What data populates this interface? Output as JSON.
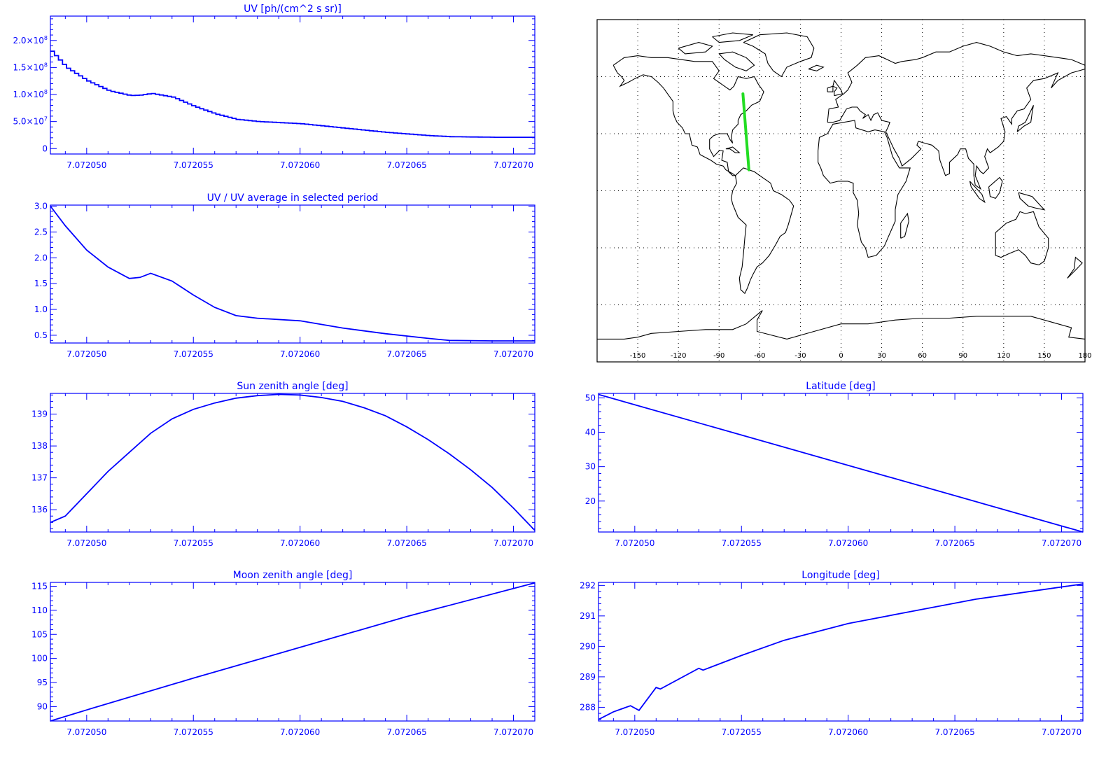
{
  "colors": {
    "axis": "#0000ff",
    "series": "#0000ff",
    "map": "#000000",
    "track": "#22dd22"
  },
  "chart_data": [
    {
      "id": "uv",
      "type": "line",
      "title": "UV [ph/(cm^2 s sr)]",
      "xlabel": "",
      "ylabel": "",
      "step": true,
      "xlim": [
        7.0720483,
        7.072071
      ],
      "ylim": [
        -10000000.0,
        245000000.0
      ],
      "xticks": [
        7.07205,
        7.072055,
        7.07206,
        7.072065,
        7.07207
      ],
      "xtick_labels": [
        "7.072050",
        "7.072055",
        "7.072060",
        "7.072065",
        "7.072070"
      ],
      "yticks": [
        0,
        50000000.0,
        100000000.0,
        150000000.0,
        200000000.0
      ],
      "ytick_labels": [
        {
          "m": "0",
          "e": ""
        },
        {
          "m": "5.0×10",
          "e": "7"
        },
        {
          "m": "1.0×10",
          "e": "8"
        },
        {
          "m": "1.5×10",
          "e": "8"
        },
        {
          "m": "2.0×10",
          "e": "8"
        }
      ],
      "x": [
        7.0720483,
        7.072049,
        7.07205,
        7.072051,
        7.072052,
        7.0720525,
        7.072053,
        7.072054,
        7.072055,
        7.072056,
        7.072057,
        7.072058,
        7.07206,
        7.072062,
        7.072064,
        7.072066,
        7.072067,
        7.072069,
        7.072071
      ],
      "y": [
        180000000.0,
        150000000.0,
        125000000.0,
        107000000.0,
        98000000.0,
        99000000.0,
        102000000.0,
        95000000.0,
        78000000.0,
        64000000.0,
        54000000.0,
        50000000.0,
        46000000.0,
        38000000.0,
        30000000.0,
        24000000.0,
        22000000.0,
        21000000.0,
        21000000.0
      ]
    },
    {
      "id": "uv-ratio",
      "type": "line",
      "title": "UV / UV average in selected period",
      "xlabel": "",
      "ylabel": "",
      "xlim": [
        7.0720483,
        7.072071
      ],
      "ylim": [
        0.35,
        3.02
      ],
      "xticks": [
        7.07205,
        7.072055,
        7.07206,
        7.072065,
        7.07207
      ],
      "xtick_labels": [
        "7.072050",
        "7.072055",
        "7.072060",
        "7.072065",
        "7.072070"
      ],
      "yticks": [
        0.5,
        1.0,
        1.5,
        2.0,
        2.5,
        3.0
      ],
      "ytick_labels": [
        {
          "m": "0.5",
          "e": ""
        },
        {
          "m": "1.0",
          "e": ""
        },
        {
          "m": "1.5",
          "e": ""
        },
        {
          "m": "2.0",
          "e": ""
        },
        {
          "m": "2.5",
          "e": ""
        },
        {
          "m": "3.0",
          "e": ""
        }
      ],
      "x": [
        7.0720483,
        7.072049,
        7.07205,
        7.072051,
        7.072052,
        7.0720525,
        7.072053,
        7.072054,
        7.072055,
        7.072056,
        7.072057,
        7.072058,
        7.07206,
        7.072062,
        7.072064,
        7.072066,
        7.072067,
        7.072069,
        7.072071
      ],
      "y": [
        3.0,
        2.62,
        2.15,
        1.82,
        1.6,
        1.62,
        1.7,
        1.55,
        1.28,
        1.04,
        0.88,
        0.83,
        0.78,
        0.64,
        0.53,
        0.44,
        0.4,
        0.39,
        0.39
      ]
    },
    {
      "id": "sun-zenith",
      "type": "line",
      "title": "Sun zenith angle [deg]",
      "xlabel": "",
      "ylabel": "",
      "xlim": [
        7.0720483,
        7.072071
      ],
      "ylim": [
        135.3,
        139.65
      ],
      "xticks": [
        7.07205,
        7.072055,
        7.07206,
        7.072065,
        7.07207
      ],
      "xtick_labels": [
        "7.072050",
        "7.072055",
        "7.072060",
        "7.072065",
        "7.072070"
      ],
      "yticks": [
        136,
        137,
        138,
        139
      ],
      "ytick_labels": [
        {
          "m": "136",
          "e": ""
        },
        {
          "m": "137",
          "e": ""
        },
        {
          "m": "138",
          "e": ""
        },
        {
          "m": "139",
          "e": ""
        }
      ],
      "x": [
        7.0720483,
        7.072049,
        7.07205,
        7.072051,
        7.072052,
        7.072053,
        7.072054,
        7.072055,
        7.072056,
        7.072057,
        7.072058,
        7.072059,
        7.07206,
        7.072061,
        7.072062,
        7.072063,
        7.072064,
        7.072065,
        7.072066,
        7.072067,
        7.072068,
        7.072069,
        7.07207,
        7.072071
      ],
      "y": [
        135.6,
        135.8,
        136.5,
        137.2,
        137.8,
        138.4,
        138.85,
        139.15,
        139.35,
        139.5,
        139.58,
        139.62,
        139.6,
        139.52,
        139.4,
        139.2,
        138.95,
        138.6,
        138.2,
        137.75,
        137.25,
        136.7,
        136.05,
        135.35
      ]
    },
    {
      "id": "moon-zenith",
      "type": "line",
      "title": "Moon zenith angle [deg]",
      "xlabel": "",
      "ylabel": "",
      "xlim": [
        7.0720483,
        7.072071
      ],
      "ylim": [
        87,
        115.8
      ],
      "xticks": [
        7.07205,
        7.072055,
        7.07206,
        7.072065,
        7.07207
      ],
      "xtick_labels": [
        "7.072050",
        "7.072055",
        "7.072060",
        "7.072065",
        "7.072070"
      ],
      "yticks": [
        90,
        95,
        100,
        105,
        110,
        115
      ],
      "ytick_labels": [
        {
          "m": "90",
          "e": ""
        },
        {
          "m": "95",
          "e": ""
        },
        {
          "m": "100",
          "e": ""
        },
        {
          "m": "105",
          "e": ""
        },
        {
          "m": "110",
          "e": ""
        },
        {
          "m": "115",
          "e": ""
        }
      ],
      "x": [
        7.0720483,
        7.07205,
        7.072055,
        7.07206,
        7.072065,
        7.072071
      ],
      "y": [
        87.0,
        89.3,
        95.9,
        102.3,
        108.7,
        115.7
      ]
    },
    {
      "id": "latitude",
      "type": "line",
      "title": "Latitude [deg]",
      "xlabel": "",
      "ylabel": "",
      "xlim": [
        7.0720483,
        7.072071
      ],
      "ylim": [
        11,
        51.3
      ],
      "xticks": [
        7.07205,
        7.072055,
        7.07206,
        7.072065,
        7.07207
      ],
      "xtick_labels": [
        "7.072050",
        "7.072055",
        "7.072060",
        "7.072065",
        "7.072070"
      ],
      "yticks": [
        20,
        30,
        40,
        50
      ],
      "ytick_labels": [
        {
          "m": "20",
          "e": ""
        },
        {
          "m": "30",
          "e": ""
        },
        {
          "m": "40",
          "e": ""
        },
        {
          "m": "50",
          "e": ""
        }
      ],
      "x": [
        7.0720483,
        7.072071
      ],
      "y": [
        51.0,
        11.0
      ]
    },
    {
      "id": "longitude",
      "type": "line",
      "title": "Longitude [deg]",
      "xlabel": "",
      "ylabel": "",
      "xlim": [
        7.0720483,
        7.072071
      ],
      "ylim": [
        287.55,
        292.1
      ],
      "xticks": [
        7.07205,
        7.072055,
        7.07206,
        7.072065,
        7.07207
      ],
      "xtick_labels": [
        "7.072050",
        "7.072055",
        "7.072060",
        "7.072065",
        "7.072070"
      ],
      "yticks": [
        288,
        289,
        290,
        291,
        292
      ],
      "ytick_labels": [
        {
          "m": "288",
          "e": ""
        },
        {
          "m": "289",
          "e": ""
        },
        {
          "m": "290",
          "e": ""
        },
        {
          "m": "291",
          "e": ""
        },
        {
          "m": "292",
          "e": ""
        }
      ],
      "x": [
        7.0720483,
        7.072049,
        7.0720498,
        7.0720502,
        7.072051,
        7.0720512,
        7.072053,
        7.0720532,
        7.072055,
        7.072057,
        7.07206,
        7.072063,
        7.072066,
        7.072071
      ],
      "y": [
        287.6,
        287.85,
        288.05,
        287.9,
        288.65,
        288.6,
        289.28,
        289.22,
        289.7,
        290.2,
        290.75,
        291.15,
        291.55,
        292.05
      ]
    }
  ],
  "map": {
    "lon_range": [
      -180,
      180
    ],
    "lat_range": [
      -90,
      90
    ],
    "lon_ticks": [
      -150,
      -120,
      -90,
      -60,
      -30,
      0,
      30,
      60,
      90,
      120,
      150,
      180
    ],
    "lon_tick_labels": [
      "-150",
      "-120",
      "-90",
      "-60",
      "-30",
      "0",
      "30",
      "60",
      "90",
      "120",
      "150",
      "180"
    ],
    "lat_grid": [
      -60,
      -30,
      0,
      30,
      60
    ],
    "track": {
      "start": [
        -72.4,
        51.0
      ],
      "end": [
        -68.0,
        11.0
      ]
    }
  }
}
